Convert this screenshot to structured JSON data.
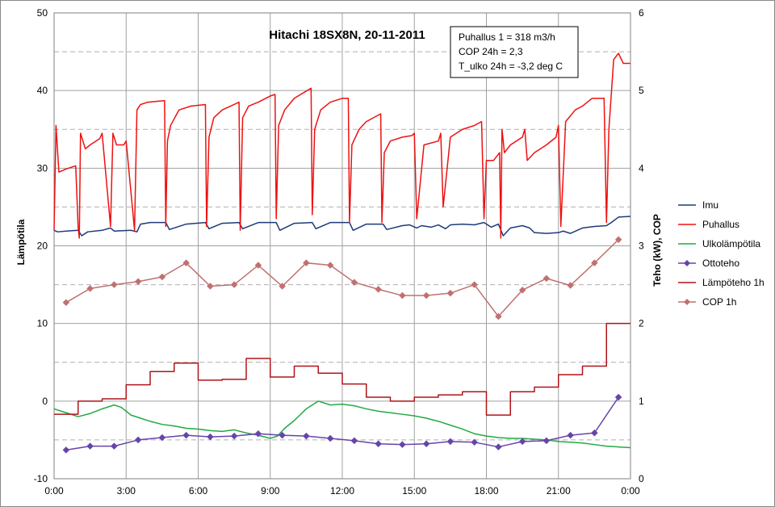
{
  "chart_data": {
    "type": "line",
    "title": "Hitachi 18SX8N, 20-11-2011",
    "ylabel_left": "Lämpötila",
    "ylabel_right": "Teho (kW), COP",
    "xlim_hours": [
      0,
      24
    ],
    "ylim_left": [
      -10,
      50
    ],
    "ylim_right": [
      0,
      6
    ],
    "x_ticks": [
      "0:00",
      "3:00",
      "6:00",
      "9:00",
      "12:00",
      "15:00",
      "18:00",
      "21:00",
      "0:00"
    ],
    "y_left_ticks": [
      "-10",
      "0",
      "10",
      "20",
      "30",
      "40",
      "50"
    ],
    "y_right_ticks": [
      "0",
      "1",
      "2",
      "3",
      "4",
      "5",
      "6"
    ],
    "grid": true,
    "legend_position": "right",
    "annotation_lines": [
      "Puhallus 1 = 318 m3/h",
      "COP 24h = 2,3",
      "T_ulko 24h = -3,2 deg C"
    ],
    "series": [
      {
        "name": "Imu",
        "axis": "left",
        "color": "#1f3a7a",
        "style": "line",
        "x": [
          0,
          0.15,
          0.5,
          1.0,
          1.15,
          1.4,
          2.0,
          2.35,
          2.5,
          3.2,
          3.45,
          3.6,
          4.0,
          4.65,
          4.8,
          5.5,
          6.3,
          6.45,
          7.0,
          7.7,
          7.85,
          8.5,
          9.25,
          9.4,
          10.0,
          10.75,
          10.9,
          11.5,
          12.3,
          12.45,
          13.0,
          13.7,
          13.85,
          14.5,
          14.8,
          15.1,
          15.3,
          15.7,
          16.0,
          16.3,
          16.5,
          17.0,
          17.5,
          17.9,
          18.2,
          18.5,
          18.7,
          19.0,
          19.5,
          19.8,
          20.0,
          20.5,
          21.0,
          21.2,
          21.5,
          22.0,
          22.5,
          23.0,
          23.2,
          23.5,
          24.0
        ],
        "y": [
          22.0,
          21.8,
          21.9,
          22.0,
          21.3,
          21.8,
          22.0,
          22.3,
          21.9,
          22.0,
          21.8,
          22.8,
          23.0,
          23.0,
          22.1,
          22.8,
          23.0,
          22.2,
          22.9,
          23.0,
          22.2,
          23.0,
          23.0,
          22.0,
          22.9,
          23.0,
          22.2,
          23.0,
          23.0,
          22.0,
          22.8,
          22.8,
          22.1,
          22.6,
          22.7,
          22.3,
          22.6,
          22.4,
          22.7,
          22.2,
          22.7,
          22.8,
          22.7,
          23.0,
          22.4,
          22.8,
          21.3,
          22.3,
          22.6,
          22.3,
          21.7,
          21.6,
          21.7,
          21.9,
          21.6,
          22.3,
          22.5,
          22.6,
          23.0,
          23.7,
          23.8
        ]
      },
      {
        "name": "Puhallus",
        "axis": "left",
        "color": "#ee1111",
        "style": "line",
        "x": [
          0,
          0.08,
          0.2,
          0.5,
          0.9,
          1.0,
          1.05,
          1.1,
          1.3,
          1.5,
          1.9,
          2.0,
          2.35,
          2.45,
          2.6,
          2.9,
          3.0,
          3.35,
          3.45,
          3.6,
          3.9,
          4.6,
          4.65,
          4.72,
          4.85,
          5.2,
          5.7,
          6.3,
          6.35,
          6.45,
          6.65,
          7.0,
          7.7,
          7.75,
          7.85,
          8.1,
          8.5,
          9.0,
          9.2,
          9.25,
          9.35,
          9.6,
          10.0,
          10.7,
          10.75,
          10.85,
          11.1,
          11.5,
          12.0,
          12.25,
          12.3,
          12.4,
          12.7,
          13.0,
          13.6,
          13.65,
          13.75,
          14.0,
          14.5,
          14.9,
          15.0,
          15.1,
          15.4,
          16.0,
          16.1,
          16.2,
          16.5,
          17.0,
          17.5,
          17.8,
          17.9,
          18.0,
          18.3,
          18.55,
          18.6,
          18.65,
          18.75,
          19.0,
          19.5,
          19.6,
          19.7,
          20.0,
          20.5,
          20.9,
          21.0,
          21.1,
          21.3,
          21.7,
          22.0,
          22.4,
          22.9,
          23.0,
          23.1,
          23.3,
          23.5,
          23.7,
          24.0
        ],
        "y": [
          22.0,
          35.5,
          29.5,
          29.9,
          30.3,
          22.5,
          21.0,
          34.5,
          32.5,
          33.0,
          33.8,
          34.5,
          22.5,
          34.5,
          33.0,
          33.0,
          33.5,
          22.0,
          37.5,
          38.2,
          38.5,
          38.7,
          22.5,
          33.5,
          35.5,
          37.5,
          38.0,
          38.2,
          22.5,
          34.0,
          36.5,
          37.5,
          38.5,
          22.0,
          36.5,
          38.0,
          38.5,
          39.3,
          39.5,
          23.5,
          35.5,
          37.5,
          39.0,
          40.3,
          24.0,
          35.0,
          37.5,
          38.5,
          39.0,
          39.0,
          23.0,
          33.0,
          35.0,
          36.0,
          37.0,
          23.0,
          32.0,
          33.5,
          34.0,
          34.2,
          34.5,
          23.5,
          33.0,
          33.5,
          34.5,
          25.0,
          34.0,
          35.0,
          35.5,
          36.0,
          23.5,
          31.0,
          31.0,
          32.0,
          21.0,
          35.0,
          32.0,
          33.0,
          34.0,
          35.0,
          31.0,
          32.0,
          33.0,
          34.0,
          35.5,
          22.5,
          36.0,
          37.5,
          38.0,
          39.0,
          39.0,
          23.0,
          35.0,
          44.0,
          44.8,
          43.5,
          43.5
        ]
      },
      {
        "name": "Ulkolämpötila",
        "axis": "left",
        "color": "#22aa44",
        "style": "line",
        "x": [
          0,
          0.5,
          1.0,
          1.5,
          2.0,
          2.5,
          2.8,
          3.2,
          3.6,
          4.0,
          4.5,
          5.0,
          5.5,
          6.0,
          6.5,
          7.0,
          7.5,
          8.0,
          8.5,
          9.0,
          9.3,
          9.6,
          10.0,
          10.5,
          11.0,
          11.5,
          12.0,
          12.5,
          13.0,
          13.5,
          14.0,
          14.5,
          15.0,
          15.5,
          16.0,
          16.5,
          17.0,
          17.5,
          18.0,
          18.5,
          19.0,
          19.5,
          20.0,
          20.5,
          21.0,
          21.5,
          22.0,
          22.5,
          23.0,
          23.5,
          24.0
        ],
        "y": [
          -1.0,
          -1.5,
          -2.0,
          -1.6,
          -1.0,
          -0.5,
          -0.8,
          -1.8,
          -2.2,
          -2.6,
          -3.0,
          -3.2,
          -3.5,
          -3.6,
          -3.8,
          -3.9,
          -3.7,
          -4.1,
          -4.4,
          -4.8,
          -4.5,
          -3.5,
          -2.5,
          -1.0,
          0.0,
          -0.5,
          -0.4,
          -0.6,
          -1.0,
          -1.3,
          -1.5,
          -1.7,
          -1.9,
          -2.2,
          -2.6,
          -3.1,
          -3.6,
          -4.2,
          -4.5,
          -4.7,
          -4.8,
          -4.8,
          -4.9,
          -5.0,
          -5.2,
          -5.3,
          -5.4,
          -5.6,
          -5.8,
          -5.9,
          -6.0
        ]
      },
      {
        "name": "Ottoteho",
        "axis": "right",
        "color": "#6644aa",
        "style": "line-marker",
        "x": [
          0.5,
          1.5,
          2.5,
          3.5,
          4.5,
          5.5,
          6.5,
          7.5,
          8.5,
          9.5,
          10.5,
          11.5,
          12.5,
          13.5,
          14.5,
          15.5,
          16.5,
          17.5,
          18.5,
          19.5,
          20.5,
          21.5,
          22.5,
          23.5
        ],
        "y": [
          0.37,
          0.42,
          0.42,
          0.5,
          0.53,
          0.56,
          0.54,
          0.55,
          0.58,
          0.56,
          0.55,
          0.52,
          0.49,
          0.45,
          0.44,
          0.45,
          0.48,
          0.47,
          0.41,
          0.48,
          0.49,
          0.56,
          0.59,
          1.05
        ]
      },
      {
        "name": "Lämpöteho 1h",
        "axis": "right",
        "color": "#b01418",
        "style": "step",
        "x": [
          0,
          1,
          2,
          3,
          4,
          5,
          6,
          7,
          8,
          9,
          10,
          11,
          12,
          13,
          14,
          15,
          16,
          17,
          18,
          19,
          20,
          21,
          22,
          23,
          24
        ],
        "y": [
          0.83,
          1.0,
          1.03,
          1.21,
          1.38,
          1.49,
          1.27,
          1.28,
          1.55,
          1.31,
          1.45,
          1.36,
          1.22,
          1.05,
          1.0,
          1.05,
          1.08,
          1.12,
          0.82,
          1.12,
          1.18,
          1.34,
          1.45,
          2.0,
          2.0
        ]
      },
      {
        "name": "COP 1h",
        "axis": "right",
        "color": "#c07070",
        "style": "line-marker",
        "x": [
          0.5,
          1.5,
          2.5,
          3.5,
          4.5,
          5.5,
          6.5,
          7.5,
          8.5,
          9.5,
          10.5,
          11.5,
          12.5,
          13.5,
          14.5,
          15.5,
          16.5,
          17.5,
          18.5,
          19.5,
          20.5,
          21.5,
          22.5,
          23.5
        ],
        "y": [
          2.27,
          2.45,
          2.5,
          2.54,
          2.6,
          2.78,
          2.48,
          2.5,
          2.75,
          2.48,
          2.78,
          2.75,
          2.53,
          2.44,
          2.36,
          2.36,
          2.39,
          2.5,
          2.09,
          2.43,
          2.58,
          2.49,
          2.78,
          3.08
        ]
      }
    ]
  }
}
